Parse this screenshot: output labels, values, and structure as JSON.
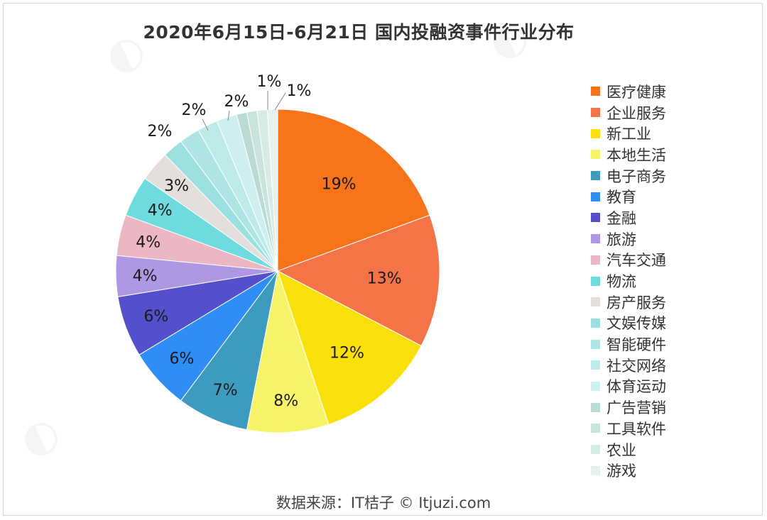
{
  "chart_data": {
    "type": "pie",
    "title": "2020年6月15日-6月21日 国内投融资事件行业分布",
    "slices": [
      {
        "name": "医疗健康",
        "value": 19,
        "label": "19%",
        "color": "#F8741B"
      },
      {
        "name": "企业服务",
        "value": 13,
        "label": "13%",
        "color": "#F47448"
      },
      {
        "name": "新工业",
        "value": 12,
        "label": "12%",
        "color": "#FAE00A"
      },
      {
        "name": "本地生活",
        "value": 8,
        "label": "8%",
        "color": "#F8F46A"
      },
      {
        "name": "电子商务",
        "value": 7,
        "label": "7%",
        "color": "#3C9BBE"
      },
      {
        "name": "教育",
        "value": 6,
        "label": "6%",
        "color": "#2F8EF5"
      },
      {
        "name": "金融",
        "value": 6,
        "label": "6%",
        "color": "#5450CC"
      },
      {
        "name": "旅游",
        "value": 4,
        "label": "4%",
        "color": "#AE98E4"
      },
      {
        "name": "汽车交通",
        "value": 4,
        "label": "4%",
        "color": "#EBB7C2"
      },
      {
        "name": "物流",
        "value": 4,
        "label": "4%",
        "color": "#6EDBDE"
      },
      {
        "name": "房产服务",
        "value": 3,
        "label": "3%",
        "color": "#E4DFDC"
      },
      {
        "name": "文娱传媒",
        "value": 2,
        "label": "2%",
        "color": "#9BE0DE"
      },
      {
        "name": "智能硬件",
        "value": 2,
        "label": "2%",
        "color": "#AEE5E4"
      },
      {
        "name": "社交网络",
        "value": 2,
        "label": "2%",
        "color": "#BEEAEA"
      },
      {
        "name": "体育运动",
        "value": 2,
        "label": "2%",
        "color": "#CEF0F0"
      },
      {
        "name": "广告营销",
        "value": 1,
        "label": "1%",
        "color": "#B9DBD3"
      },
      {
        "name": "工具软件",
        "value": 1,
        "label": "1%",
        "color": "#C8E4DD"
      },
      {
        "name": "农业",
        "value": 1,
        "label": "1%",
        "color": "#D8ECE7"
      },
      {
        "name": "游戏",
        "value": 1,
        "label": "1%",
        "color": "#E4F2EF"
      }
    ],
    "legend_position": "right"
  },
  "source": "数据来源：IT桔子 © Itjuzi.com"
}
